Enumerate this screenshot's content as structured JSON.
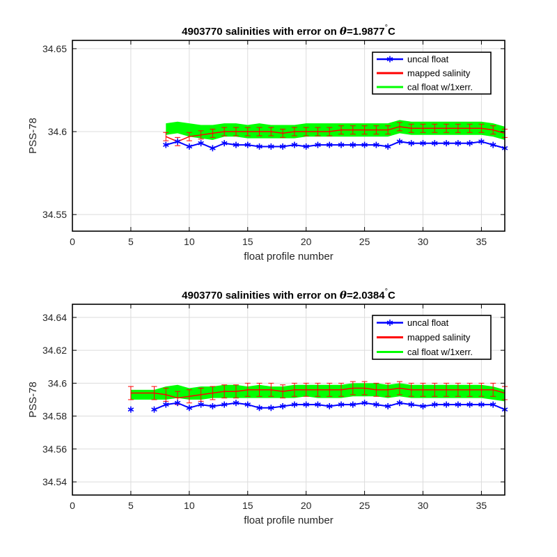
{
  "chart_data": [
    {
      "type": "line",
      "title_prefix": "4903770 salinities with error on ",
      "title_theta": "θ",
      "title_value": "=1.9877",
      "title_degree": "°",
      "title_unit": "C",
      "xlabel": "float profile number",
      "ylabel": "PSS-78",
      "xlim": [
        0,
        37
      ],
      "ylim": [
        34.54,
        34.655
      ],
      "xticks": [
        0,
        5,
        10,
        15,
        20,
        25,
        30,
        35
      ],
      "xtick_labels": [
        "0",
        "5",
        "10",
        "15",
        "20",
        "25",
        "30",
        "35"
      ],
      "yticks": [
        34.55,
        34.6,
        34.65
      ],
      "ytick_labels": [
        "34.55",
        "34.6",
        "34.65"
      ],
      "grid": true,
      "legend_position": "top-right",
      "series": [
        {
          "name": "uncal float",
          "color": "#0000ff",
          "marker": "asterisk",
          "x": [
            8,
            9,
            10,
            11,
            12,
            13,
            14,
            15,
            16,
            17,
            18,
            19,
            20,
            21,
            22,
            23,
            24,
            25,
            26,
            27,
            28,
            29,
            30,
            31,
            32,
            33,
            34,
            35,
            36,
            37
          ],
          "y": [
            34.592,
            34.594,
            34.591,
            34.593,
            34.59,
            34.593,
            34.592,
            34.592,
            34.591,
            34.591,
            34.591,
            34.592,
            34.591,
            34.592,
            34.592,
            34.592,
            34.592,
            34.592,
            34.592,
            34.591,
            34.594,
            34.593,
            34.593,
            34.593,
            34.593,
            34.593,
            34.593,
            34.594,
            34.592,
            34.59
          ]
        },
        {
          "name": "mapped salinity",
          "color": "#ff0000",
          "x": [
            8,
            9,
            10,
            11,
            12,
            13,
            14,
            15,
            16,
            17,
            18,
            19,
            20,
            21,
            22,
            23,
            24,
            25,
            26,
            27,
            28,
            29,
            30,
            31,
            32,
            33,
            34,
            35,
            36,
            37
          ],
          "y": [
            34.597,
            34.594,
            34.597,
            34.598,
            34.599,
            34.6,
            34.6,
            34.6,
            34.6,
            34.6,
            34.599,
            34.6,
            34.6,
            34.6,
            34.6,
            34.601,
            34.601,
            34.601,
            34.601,
            34.601,
            34.603,
            34.602,
            34.602,
            34.602,
            34.602,
            34.602,
            34.602,
            34.602,
            34.601,
            34.599
          ],
          "error": 0.0025
        },
        {
          "name": "cal float w/1xerr.",
          "color": "#00ff00",
          "x": [
            8,
            9,
            10,
            11,
            12,
            13,
            14,
            15,
            16,
            17,
            18,
            19,
            20,
            21,
            22,
            23,
            24,
            25,
            26,
            27,
            28,
            29,
            30,
            31,
            32,
            33,
            34,
            35,
            36,
            37
          ],
          "y_upper": [
            34.605,
            34.606,
            34.605,
            34.604,
            34.604,
            34.605,
            34.605,
            34.604,
            34.605,
            34.604,
            34.604,
            34.604,
            34.605,
            34.605,
            34.605,
            34.605,
            34.605,
            34.605,
            34.605,
            34.605,
            34.607,
            34.606,
            34.606,
            34.606,
            34.606,
            34.606,
            34.606,
            34.606,
            34.605,
            34.603
          ],
          "y_lower": [
            34.598,
            34.599,
            34.597,
            34.596,
            34.595,
            34.597,
            34.597,
            34.596,
            34.596,
            34.596,
            34.596,
            34.596,
            34.597,
            34.597,
            34.597,
            34.597,
            34.597,
            34.597,
            34.597,
            34.597,
            34.599,
            34.598,
            34.598,
            34.598,
            34.598,
            34.598,
            34.598,
            34.598,
            34.597,
            34.595
          ]
        }
      ]
    },
    {
      "type": "line",
      "title_prefix": "4903770 salinities with error on ",
      "title_theta": "θ",
      "title_value": "=2.0384",
      "title_degree": "°",
      "title_unit": "C",
      "xlabel": "float profile number",
      "ylabel": "PSS-78",
      "xlim": [
        0,
        37
      ],
      "ylim": [
        34.532,
        34.648
      ],
      "xticks": [
        0,
        5,
        10,
        15,
        20,
        25,
        30,
        35
      ],
      "xtick_labels": [
        "0",
        "5",
        "10",
        "15",
        "20",
        "25",
        "30",
        "35"
      ],
      "yticks": [
        34.54,
        34.56,
        34.58,
        34.6,
        34.62,
        34.64
      ],
      "ytick_labels": [
        "34.54",
        "34.56",
        "34.58",
        "34.6",
        "34.62",
        "34.64"
      ],
      "grid": true,
      "legend_position": "top-right",
      "series": [
        {
          "name": "uncal float",
          "color": "#0000ff",
          "marker": "asterisk",
          "x": [
            5,
            7,
            8,
            9,
            10,
            11,
            12,
            13,
            14,
            15,
            16,
            17,
            18,
            19,
            20,
            21,
            22,
            23,
            24,
            25,
            26,
            27,
            28,
            29,
            30,
            31,
            32,
            33,
            34,
            35,
            36,
            37
          ],
          "y": [
            34.584,
            34.584,
            34.587,
            34.588,
            34.585,
            34.587,
            34.586,
            34.587,
            34.588,
            34.587,
            34.585,
            34.585,
            34.586,
            34.587,
            34.587,
            34.587,
            34.586,
            34.587,
            34.587,
            34.588,
            34.587,
            34.586,
            34.588,
            34.587,
            34.586,
            34.587,
            34.587,
            34.587,
            34.587,
            34.587,
            34.587,
            34.584
          ],
          "segments": [
            [
              0,
              0
            ],
            [
              1,
              31
            ]
          ]
        },
        {
          "name": "mapped salinity",
          "color": "#ff0000",
          "x": [
            5,
            7,
            8,
            9,
            10,
            11,
            12,
            13,
            14,
            15,
            16,
            17,
            18,
            19,
            20,
            21,
            22,
            23,
            24,
            25,
            26,
            27,
            28,
            29,
            30,
            31,
            32,
            33,
            34,
            35,
            36,
            37
          ],
          "y": [
            34.594,
            34.594,
            34.593,
            34.591,
            34.592,
            34.593,
            34.594,
            34.595,
            34.595,
            34.596,
            34.596,
            34.596,
            34.595,
            34.596,
            34.596,
            34.596,
            34.596,
            34.596,
            34.597,
            34.597,
            34.596,
            34.596,
            34.597,
            34.596,
            34.596,
            34.596,
            34.596,
            34.596,
            34.596,
            34.596,
            34.596,
            34.594
          ],
          "error": 0.004
        },
        {
          "name": "cal float w/1xerr.",
          "color": "#00ff00",
          "x": [
            5,
            6,
            7,
            8,
            9,
            10,
            11,
            12,
            13,
            14,
            15,
            16,
            17,
            18,
            19,
            20,
            21,
            22,
            23,
            24,
            25,
            26,
            27,
            28,
            29,
            30,
            31,
            32,
            33,
            34,
            35,
            36,
            37
          ],
          "y_upper": [
            34.596,
            34.596,
            34.596,
            34.598,
            34.599,
            34.597,
            34.598,
            34.598,
            34.599,
            34.599,
            34.598,
            34.599,
            34.598,
            34.598,
            34.599,
            34.599,
            34.599,
            34.599,
            34.599,
            34.6,
            34.6,
            34.6,
            34.599,
            34.6,
            34.599,
            34.599,
            34.599,
            34.599,
            34.599,
            34.599,
            34.599,
            34.598,
            34.596
          ],
          "y_lower": [
            34.59,
            34.59,
            34.59,
            34.59,
            34.591,
            34.59,
            34.59,
            34.591,
            34.591,
            34.591,
            34.591,
            34.591,
            34.591,
            34.591,
            34.591,
            34.592,
            34.591,
            34.591,
            34.591,
            34.592,
            34.592,
            34.592,
            34.591,
            34.592,
            34.591,
            34.591,
            34.591,
            34.591,
            34.591,
            34.591,
            34.591,
            34.59,
            34.589
          ]
        }
      ]
    }
  ]
}
